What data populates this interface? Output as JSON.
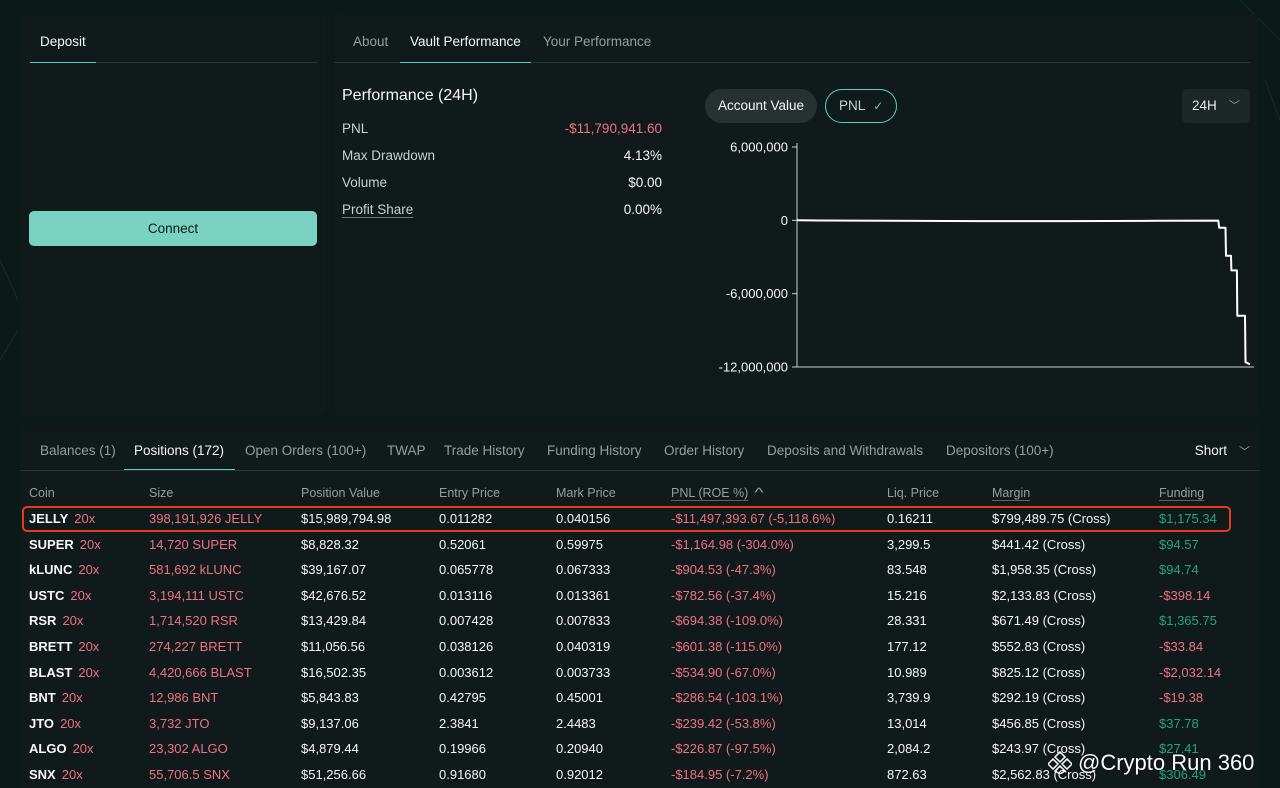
{
  "deposit_panel": {
    "tab_label": "Deposit",
    "connect_label": "Connect"
  },
  "performance_panel": {
    "tabs": [
      {
        "label": "About"
      },
      {
        "label": "Vault Performance"
      },
      {
        "label": "Your Performance"
      }
    ],
    "active_tab": "Vault Performance",
    "title": "Performance (24H)",
    "stats": [
      {
        "label": "PNL",
        "value": "-$11,790,941.60"
      },
      {
        "label": "Max Drawdown",
        "value": "4.13%"
      },
      {
        "label": "Volume",
        "value": "$0.00"
      },
      {
        "label": "Profit Share",
        "value": "0.00%"
      }
    ],
    "account_value_label": "Account Value",
    "pnl_toggle_label": "PNL",
    "range_value": "24H"
  },
  "chart_data": {
    "type": "line",
    "title": "",
    "xlabel": "",
    "ylabel": "",
    "ylim": [
      -12000000,
      6000000
    ],
    "y_ticks": [
      "6,000,000",
      "0",
      "-6,000,000",
      "-12,000,000"
    ],
    "y_tick_values": [
      6000000,
      0,
      -6000000,
      -12000000
    ],
    "xlim": [
      0,
      100
    ],
    "x_ticks_shown": false,
    "grid": false,
    "series": [
      {
        "name": "",
        "x": [
          0,
          5,
          20,
          40,
          60,
          80,
          93.0,
          93.2,
          94.6,
          94.7,
          95.8,
          95.9,
          97.1,
          97.2,
          98.9,
          99.0,
          100
        ],
        "y": [
          0,
          -10000,
          -40000,
          -60000,
          -60000,
          -40000,
          -20000,
          -600000,
          -600000,
          -2900000,
          -2900000,
          -4100000,
          -4100000,
          -7800000,
          -7800000,
          -11600000,
          -11790941.6
        ]
      }
    ],
    "color": "#ffffff"
  },
  "table": {
    "tabs": [
      {
        "label": "Balances (1)"
      },
      {
        "label": "Positions (172)"
      },
      {
        "label": "Open Orders (100+)"
      },
      {
        "label": "TWAP"
      },
      {
        "label": "Trade History"
      },
      {
        "label": "Funding History"
      },
      {
        "label": "Order History"
      },
      {
        "label": "Deposits and Withdrawals"
      },
      {
        "label": "Depositors (100+)"
      }
    ],
    "active_tab": "Positions (172)",
    "sort_label": "Short",
    "sort_arrow": "^",
    "columns": {
      "coin": "Coin",
      "size": "Size",
      "position_value": "Position Value",
      "entry_price": "Entry Price",
      "mark_price": "Mark Price",
      "pnl": "PNL (ROE %)",
      "liq_price": "Liq. Price",
      "margin": "Margin",
      "funding": "Funding"
    },
    "rows": [
      {
        "coin": "JELLY",
        "leverage": "20x",
        "size": "398,191,926 JELLY",
        "position_value": "$15,989,794.98",
        "entry_price": "0.011282",
        "mark_price": "0.040156",
        "pnl": "-$11,497,393.67 (-5,118.6%)",
        "liq_price": "0.16211",
        "margin": "$799,489.75 (Cross)",
        "funding": "$1,175.34"
      },
      {
        "coin": "SUPER",
        "leverage": "20x",
        "size": "14,720 SUPER",
        "position_value": "$8,828.32",
        "entry_price": "0.52061",
        "mark_price": "0.59975",
        "pnl": "-$1,164.98 (-304.0%)",
        "liq_price": "3,299.5",
        "margin": "$441.42 (Cross)",
        "funding": "$94.57"
      },
      {
        "coin": "kLUNC",
        "leverage": "20x",
        "size": "581,692 kLUNC",
        "position_value": "$39,167.07",
        "entry_price": "0.065778",
        "mark_price": "0.067333",
        "pnl": "-$904.53 (-47.3%)",
        "liq_price": "83.548",
        "margin": "$1,958.35 (Cross)",
        "funding": "$94.74"
      },
      {
        "coin": "USTC",
        "leverage": "20x",
        "size": "3,194,111 USTC",
        "position_value": "$42,676.52",
        "entry_price": "0.013116",
        "mark_price": "0.013361",
        "pnl": "-$782.56 (-37.4%)",
        "liq_price": "15.216",
        "margin": "$2,133.83 (Cross)",
        "funding": "-$398.14"
      },
      {
        "coin": "RSR",
        "leverage": "20x",
        "size": "1,714,520 RSR",
        "position_value": "$13,429.84",
        "entry_price": "0.007428",
        "mark_price": "0.007833",
        "pnl": "-$694.38 (-109.0%)",
        "liq_price": "28.331",
        "margin": "$671.49 (Cross)",
        "funding": "$1,365.75"
      },
      {
        "coin": "BRETT",
        "leverage": "20x",
        "size": "274,227 BRETT",
        "position_value": "$11,056.56",
        "entry_price": "0.038126",
        "mark_price": "0.040319",
        "pnl": "-$601.38 (-115.0%)",
        "liq_price": "177.12",
        "margin": "$552.83 (Cross)",
        "funding": "-$33.84"
      },
      {
        "coin": "BLAST",
        "leverage": "20x",
        "size": "4,420,666 BLAST",
        "position_value": "$16,502.35",
        "entry_price": "0.003612",
        "mark_price": "0.003733",
        "pnl": "-$534.90 (-67.0%)",
        "liq_price": "10.989",
        "margin": "$825.12 (Cross)",
        "funding": "-$2,032.14"
      },
      {
        "coin": "BNT",
        "leverage": "20x",
        "size": "12,986 BNT",
        "position_value": "$5,843.83",
        "entry_price": "0.42795",
        "mark_price": "0.45001",
        "pnl": "-$286.54 (-103.1%)",
        "liq_price": "3,739.9",
        "margin": "$292.19 (Cross)",
        "funding": "-$19.38"
      },
      {
        "coin": "JTO",
        "leverage": "20x",
        "size": "3,732 JTO",
        "position_value": "$9,137.06",
        "entry_price": "2.3841",
        "mark_price": "2.4483",
        "pnl": "-$239.42 (-53.8%)",
        "liq_price": "13,014",
        "margin": "$456.85 (Cross)",
        "funding": "$37.78"
      },
      {
        "coin": "ALGO",
        "leverage": "20x",
        "size": "23,302 ALGO",
        "position_value": "$4,879.44",
        "entry_price": "0.19966",
        "mark_price": "0.20940",
        "pnl": "-$226.87 (-97.5%)",
        "liq_price": "2,084.2",
        "margin": "$243.97 (Cross)",
        "funding": "$27.41"
      },
      {
        "coin": "SNX",
        "leverage": "20x",
        "size": "55,706.5 SNX",
        "position_value": "$51,256.66",
        "entry_price": "0.91680",
        "mark_price": "0.92012",
        "pnl": "-$184.95 (-7.2%)",
        "liq_price": "872.63",
        "margin": "$2,562.83 (Cross)",
        "funding": "$306.49"
      }
    ]
  },
  "watermark": {
    "text": "@Crypto Run 360"
  },
  "colors": {
    "accent": "#50d2c1",
    "negative": "#ed7088",
    "positive": "#1fa67d",
    "highlight": "#e8391f"
  }
}
